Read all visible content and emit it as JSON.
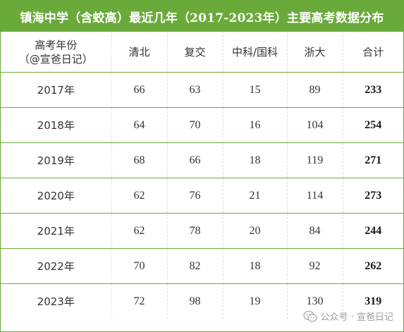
{
  "title": "镇海中学（含蛟高）最近几年（2017-2023年）主要高考数据分布",
  "table": {
    "headers": [
      {
        "line1": "高考年份",
        "line2": "（@宣爸日记）"
      },
      {
        "line1": "清北",
        "line2": ""
      },
      {
        "line1": "复交",
        "line2": ""
      },
      {
        "line1": "中科/国科",
        "line2": ""
      },
      {
        "line1": "浙大",
        "line2": ""
      },
      {
        "line1": "合计",
        "line2": ""
      }
    ],
    "rows": [
      {
        "year": "2017年",
        "qingbei": "66",
        "fujiao": "63",
        "zhongke": "15",
        "zheda": "89",
        "total": "233"
      },
      {
        "year": "2018年",
        "qingbei": "64",
        "fujiao": "70",
        "zhongke": "16",
        "zheda": "104",
        "total": "254"
      },
      {
        "year": "2019年",
        "qingbei": "68",
        "fujiao": "66",
        "zhongke": "18",
        "zheda": "119",
        "total": "271"
      },
      {
        "year": "2020年",
        "qingbei": "62",
        "fujiao": "76",
        "zhongke": "21",
        "zheda": "114",
        "total": "273"
      },
      {
        "year": "2021年",
        "qingbei": "62",
        "fujiao": "78",
        "zhongke": "20",
        "zheda": "84",
        "total": "244"
      },
      {
        "year": "2022年",
        "qingbei": "70",
        "fujiao": "82",
        "zhongke": "18",
        "zheda": "92",
        "total": "262"
      },
      {
        "year": "2023年",
        "qingbei": "72",
        "fujiao": "98",
        "zhongke": "19",
        "zheda": "130",
        "total": "319"
      }
    ]
  },
  "watermark": {
    "text": "公众号 · 宣爸日记",
    "icon": "wechat-icon"
  },
  "colors": {
    "accent": "#6aaa3a",
    "title_text": "#ffffff",
    "body_text": "#333333"
  }
}
